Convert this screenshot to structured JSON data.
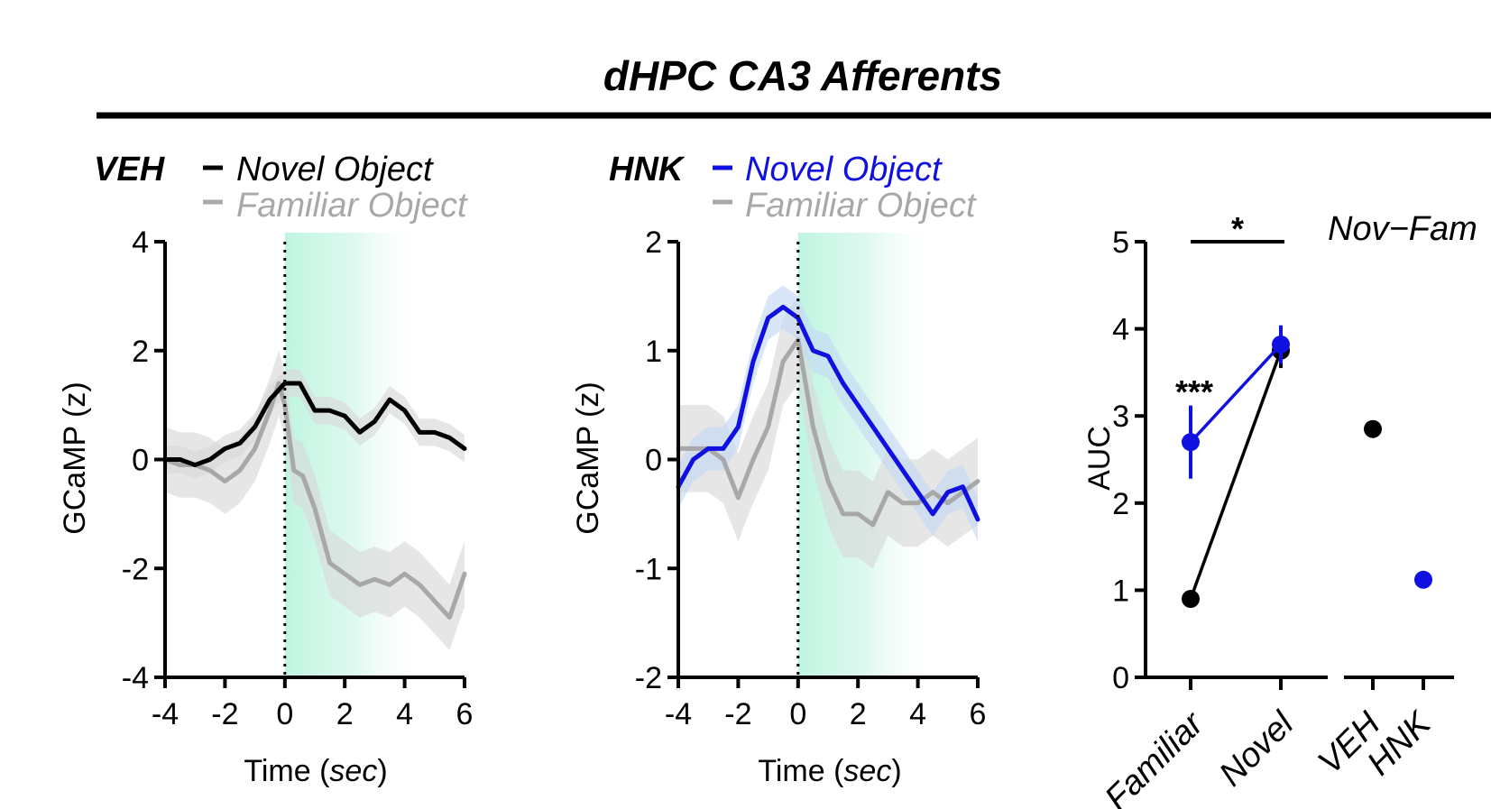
{
  "figure_title": "dHPC CA3 Afferents",
  "colors": {
    "black": "#000000",
    "gray": "#a8a8a8",
    "blue": "#1010e0",
    "shade_black": "#d8d8d8",
    "shade_blue": "#c4d8f4",
    "window": "#bff5e0"
  },
  "chart_data": [
    {
      "type": "line",
      "group_label": "VEH",
      "legend": [
        "Novel Object",
        "Familiar Object"
      ],
      "ylabel": "GCaMP (z)",
      "xlabel_main": "Time (",
      "xlabel_unit": "sec",
      "xlabel_end": ")",
      "xlim": [
        -4,
        6
      ],
      "ylim": [
        -4,
        4
      ],
      "xticks": [
        -4,
        -2,
        0,
        2,
        4,
        6
      ],
      "yticks": [
        -4,
        -2,
        0,
        2,
        4
      ],
      "ytick_labels": [
        "-4",
        "-2",
        "0",
        "2",
        "4"
      ],
      "event_line_x": 0,
      "shaded_window": [
        0,
        4
      ],
      "series": [
        {
          "name": "Familiar Object",
          "color": "gray",
          "x": [
            -4,
            -3.5,
            -3,
            -2.5,
            -2,
            -1.5,
            -1,
            -0.5,
            -0.2,
            0,
            0.3,
            0.6,
            1,
            1.5,
            2,
            2.5,
            3,
            3.5,
            4,
            4.5,
            5,
            5.5,
            6
          ],
          "y": [
            0,
            -0.1,
            -0.1,
            -0.2,
            -0.4,
            -0.2,
            0.2,
            0.9,
            1.4,
            1.0,
            -0.2,
            -0.3,
            -0.9,
            -1.9,
            -2.1,
            -2.3,
            -2.2,
            -2.3,
            -2.1,
            -2.3,
            -2.6,
            -2.9,
            -2.1
          ],
          "band": 0.6
        },
        {
          "name": "Novel Object",
          "color": "black",
          "x": [
            -4,
            -3.5,
            -3,
            -2.5,
            -2,
            -1.5,
            -1,
            -0.5,
            0,
            0.5,
            1,
            1.5,
            2,
            2.5,
            3,
            3.5,
            4,
            4.5,
            5,
            5.5,
            6
          ],
          "y": [
            0,
            0,
            -0.1,
            0,
            0.2,
            0.3,
            0.6,
            1.1,
            1.4,
            1.4,
            0.9,
            0.9,
            0.8,
            0.5,
            0.7,
            1.1,
            0.9,
            0.5,
            0.5,
            0.4,
            0.2
          ],
          "band": 0.25
        }
      ]
    },
    {
      "type": "line",
      "group_label": "HNK",
      "legend": [
        "Novel Object",
        "Familiar Object"
      ],
      "ylabel": "GCaMP (z)",
      "xlabel_main": "Time (",
      "xlabel_unit": "sec",
      "xlabel_end": ")",
      "xlim": [
        -4,
        6
      ],
      "ylim": [
        -2,
        2
      ],
      "xticks": [
        -4,
        -2,
        0,
        2,
        4,
        6
      ],
      "yticks": [
        -2,
        -1,
        0,
        1,
        2
      ],
      "ytick_labels": [
        "-2",
        "-1",
        "0",
        "1",
        "2"
      ],
      "event_line_x": 0,
      "shaded_window": [
        0,
        4
      ],
      "series": [
        {
          "name": "Familiar Object",
          "color": "gray",
          "x": [
            -4,
            -3.5,
            -3,
            -2.5,
            -2,
            -1.5,
            -1,
            -0.5,
            0,
            0.5,
            1,
            1.5,
            2,
            2.5,
            3,
            3.5,
            4,
            4.5,
            5,
            5.5,
            6
          ],
          "y": [
            0.1,
            0.1,
            0.1,
            0,
            -0.35,
            0,
            0.3,
            0.9,
            1.1,
            0.3,
            -0.2,
            -0.5,
            -0.5,
            -0.6,
            -0.3,
            -0.4,
            -0.4,
            -0.3,
            -0.4,
            -0.3,
            -0.2
          ],
          "band": 0.4
        },
        {
          "name": "Novel Object",
          "color": "blue",
          "x": [
            -4,
            -3.5,
            -3,
            -2.5,
            -2,
            -1.5,
            -1,
            -0.5,
            0,
            0.5,
            1,
            1.5,
            2,
            2.5,
            3,
            3.5,
            4,
            4.5,
            5,
            5.5,
            6
          ],
          "y": [
            -0.25,
            0,
            0.1,
            0.1,
            0.3,
            0.9,
            1.3,
            1.4,
            1.3,
            1.0,
            0.95,
            0.7,
            0.5,
            0.3,
            0.1,
            -0.1,
            -0.3,
            -0.5,
            -0.3,
            -0.25,
            -0.55
          ],
          "band": 0.2
        }
      ]
    },
    {
      "type": "scatter",
      "ylabel": "AUC",
      "ylim": [
        0,
        5
      ],
      "yticks": [
        0,
        1,
        2,
        3,
        4,
        5
      ],
      "ytick_labels": [
        "0",
        "1",
        "2",
        "3",
        "4",
        "5"
      ],
      "categories": [
        "Familiar",
        "Novel"
      ],
      "series": [
        {
          "name": "VEH",
          "color": "black",
          "values": [
            0.9,
            3.75
          ],
          "errors": [
            0.1,
            0.2
          ]
        },
        {
          "name": "HNK",
          "color": "blue",
          "values": [
            2.7,
            3.82
          ],
          "errors": [
            0.42,
            0.22
          ]
        }
      ],
      "significance_between": "*",
      "significance_familiar": "***",
      "inset": {
        "title": "Nov−Fam",
        "categories": [
          "VEH",
          "HNK"
        ],
        "values": [
          2.85,
          1.12
        ],
        "colors": [
          "black",
          "blue"
        ]
      }
    }
  ]
}
